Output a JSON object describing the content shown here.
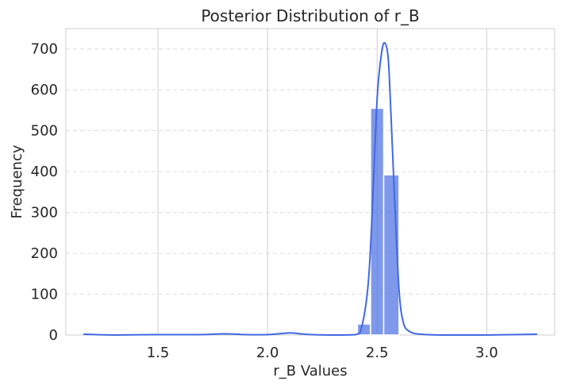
{
  "chart_data": {
    "type": "bar",
    "title": "Posterior Distribution of r_B",
    "xlabel": "r_B Values",
    "ylabel": "Frequency",
    "xlim": [
      1.08,
      3.31
    ],
    "ylim": [
      0,
      750
    ],
    "xticks": [
      1.5,
      2.0,
      2.5,
      3.0
    ],
    "xtick_labels": [
      "1.5",
      "2.0",
      "2.5",
      "3.0"
    ],
    "yticks": [
      0,
      100,
      200,
      300,
      400,
      500,
      600,
      700
    ],
    "ytick_labels": [
      "0",
      "100",
      "200",
      "300",
      "400",
      "500",
      "600",
      "700"
    ],
    "grid": true,
    "legend": "none",
    "series": [
      {
        "type": "histogram",
        "bins": [
          {
            "x0": 2.41,
            "x1": 2.47,
            "count": 27
          },
          {
            "x0": 2.47,
            "x1": 2.53,
            "count": 555
          },
          {
            "x0": 2.53,
            "x1": 2.6,
            "count": 392
          }
        ],
        "color": "#4169e1"
      },
      {
        "type": "kde",
        "x": [
          1.16,
          1.3,
          1.5,
          1.7,
          1.8,
          1.9,
          2.0,
          2.1,
          2.15,
          2.2,
          2.3,
          2.4,
          2.43,
          2.46,
          2.48,
          2.5,
          2.52,
          2.535,
          2.55,
          2.56,
          2.58,
          2.6,
          2.62,
          2.65,
          2.7,
          2.8,
          3.0,
          3.23
        ],
        "y": [
          2,
          0,
          1,
          1,
          3,
          1,
          1,
          5,
          3,
          1,
          0,
          1,
          20,
          130,
          330,
          580,
          690,
          715,
          680,
          580,
          330,
          110,
          30,
          8,
          2,
          0,
          0,
          2
        ],
        "color": "#4169e1"
      }
    ]
  }
}
